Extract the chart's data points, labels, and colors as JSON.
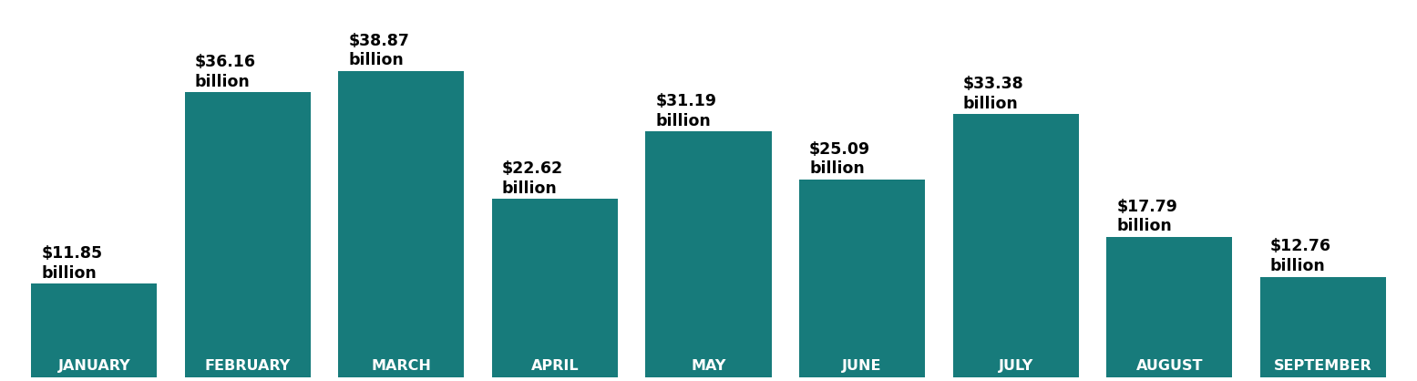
{
  "categories": [
    "JANUARY",
    "FEBRUARY",
    "MARCH",
    "APRIL",
    "MAY",
    "JUNE",
    "JULY",
    "AUGUST",
    "SEPTEMBER"
  ],
  "values": [
    11.85,
    36.16,
    38.87,
    22.62,
    31.19,
    25.09,
    33.38,
    17.79,
    12.76
  ],
  "labels": [
    "$11.85\nbillion",
    "$36.16\nbillion",
    "$38.87\nbillion",
    "$22.62\nbillion",
    "$31.19\nbillion",
    "$25.09\nbillion",
    "$33.38\nbillion",
    "$17.79\nbillion",
    "$12.76\nbillion"
  ],
  "bar_color": "#177B7B",
  "background_color": "#ffffff",
  "label_color_above": "#000000",
  "label_color_inside": "#ffffff",
  "ylim": [
    0,
    44
  ],
  "label_fontsize": 12.5,
  "month_fontsize": 11.5,
  "bar_width": 0.82
}
